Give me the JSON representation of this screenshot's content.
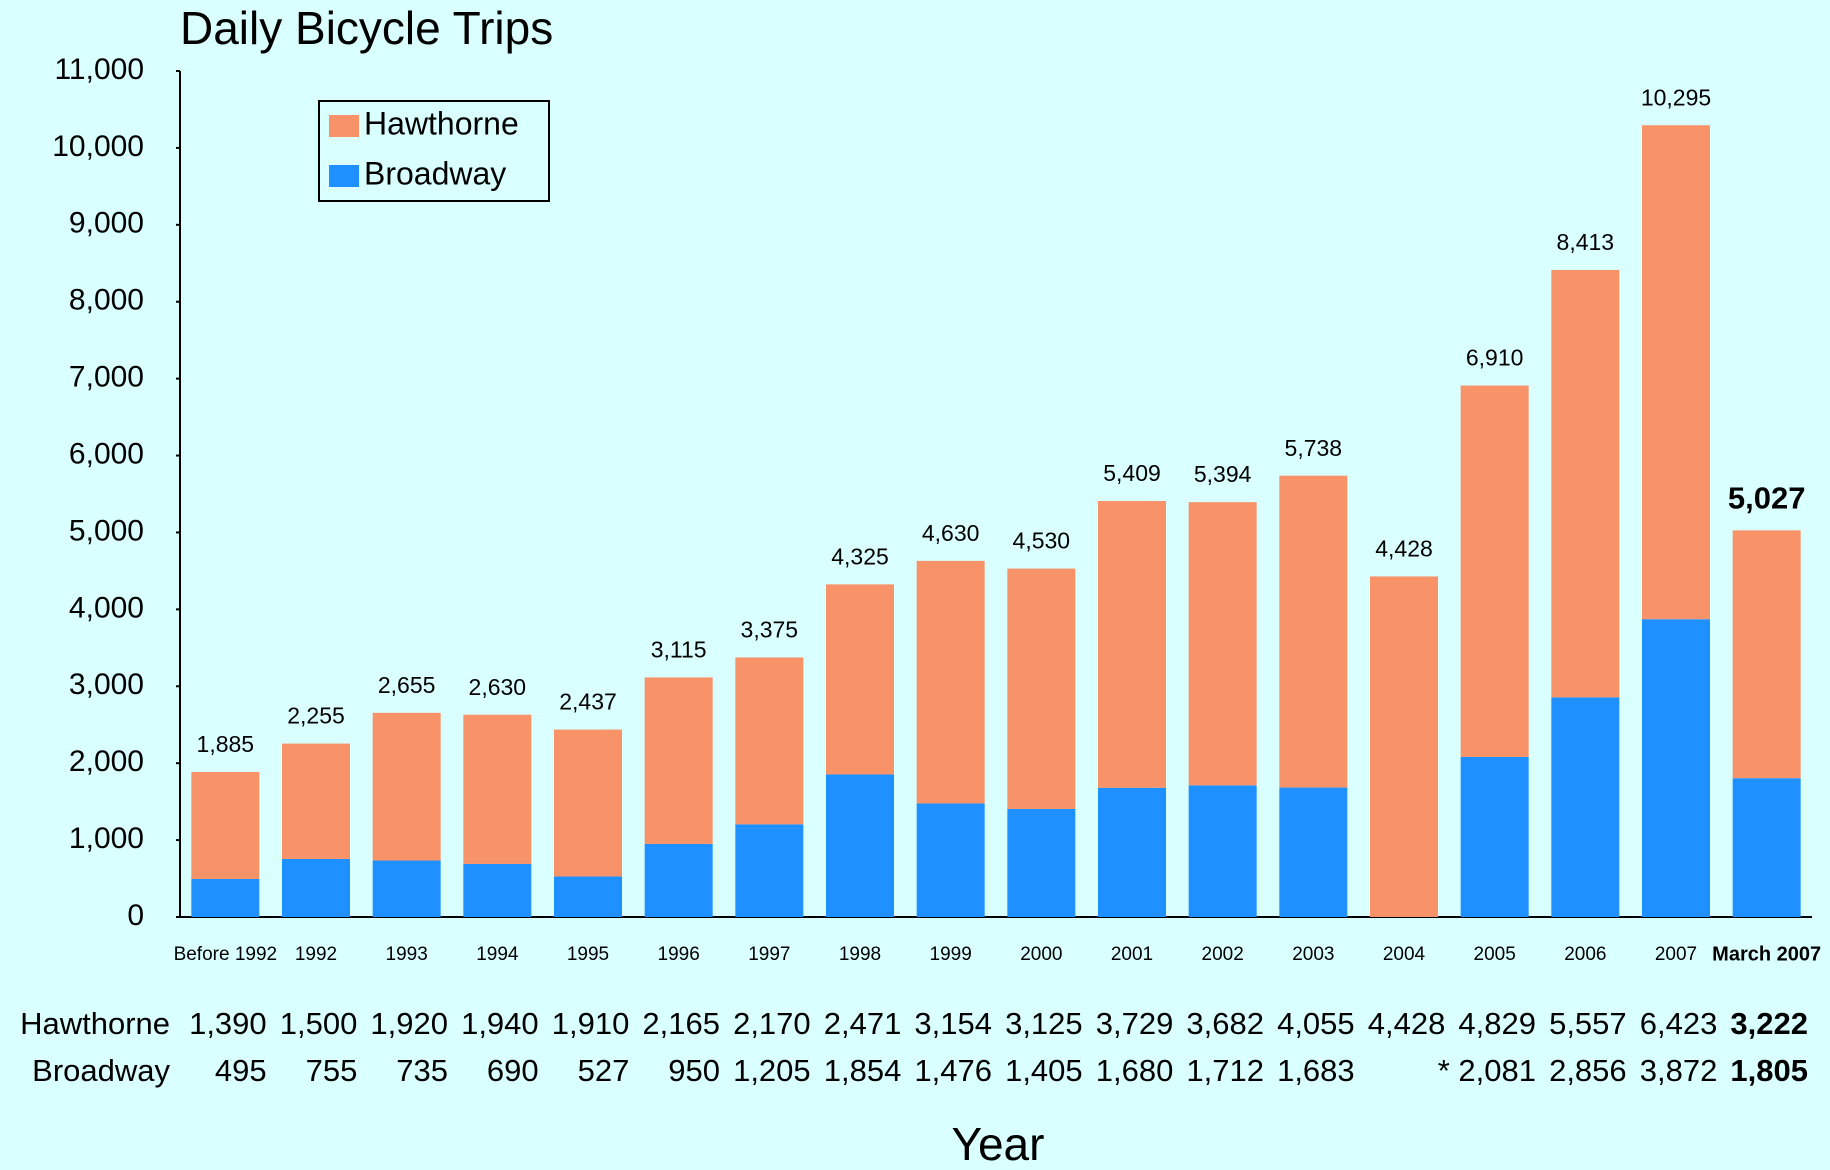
{
  "chart_data": {
    "type": "stacked_bar",
    "title": "Daily Bicycle Trips",
    "x_label": "Year",
    "categories": [
      "Before 1992",
      "1992",
      "1993",
      "1994",
      "1995",
      "1996",
      "1997",
      "1998",
      "1999",
      "2000",
      "2001",
      "2002",
      "2003",
      "2004",
      "2005",
      "2006",
      "2007",
      "March 2007"
    ],
    "highlight_categories": [
      "March 2007"
    ],
    "highlight_color": "#0000ff",
    "series": [
      {
        "name": "Broadway",
        "color": "#1e90ff",
        "values": [
          495,
          755,
          735,
          690,
          527,
          950,
          1205,
          1854,
          1476,
          1405,
          1680,
          1712,
          1683,
          null,
          2081,
          2856,
          3872,
          1805
        ],
        "value_labels": [
          "495",
          "755",
          "735",
          "690",
          "527",
          "950",
          "1,205",
          "1,854",
          "1,476",
          "1,405",
          "1,680",
          "1,712",
          "1,683",
          null,
          "* 2,081",
          "2,856",
          "3,872",
          "1,805"
        ]
      },
      {
        "name": "Hawthorne",
        "color": "#f89268",
        "values": [
          1390,
          1500,
          1920,
          1940,
          1910,
          2165,
          2170,
          2471,
          3154,
          3125,
          3729,
          3682,
          4055,
          4428,
          4829,
          5557,
          6423,
          3222
        ],
        "value_labels": [
          "1,390",
          "1,500",
          "1,920",
          "1,940",
          "1,910",
          "2,165",
          "2,170",
          "2,471",
          "3,154",
          "3,125",
          "3,729",
          "3,682",
          "4,055",
          "4,428",
          "4,829",
          "5,557",
          "6,423",
          "3,222"
        ]
      }
    ],
    "totals": [
      1885,
      2255,
      2655,
      2630,
      2437,
      3115,
      3375,
      4325,
      4630,
      4530,
      5409,
      5394,
      5738,
      4428,
      6910,
      8413,
      10295,
      5027
    ],
    "total_labels": [
      "1,885",
      "2,255",
      "2,655",
      "2,630",
      "2,437",
      "3,115",
      "3,375",
      "4,325",
      "4,630",
      "4,530",
      "5,409",
      "5,394",
      "5,738",
      "4,428",
      "6,910",
      "8,413",
      "10,295",
      "5,027"
    ],
    "ylim": [
      0,
      11000
    ],
    "yticks": [
      0,
      {
        "value": 1000,
        "label": "1,000"
      },
      {
        "value": 2000,
        "label": "2,000"
      },
      {
        "value": 3000,
        "label": "3,000"
      },
      {
        "value": 4000,
        "label": "4,000"
      },
      {
        "value": 5000,
        "label": "5,000"
      },
      {
        "value": 6000,
        "label": "6,000"
      },
      {
        "value": 7000,
        "label": "7,000"
      },
      {
        "value": 8000,
        "label": "8,000"
      },
      {
        "value": 9000,
        "label": "9,000"
      },
      {
        "value": 10000,
        "label": "10,000"
      },
      {
        "value": 11000,
        "label": "11,000"
      }
    ],
    "legend_order": [
      "Hawthorne",
      "Broadway"
    ]
  }
}
